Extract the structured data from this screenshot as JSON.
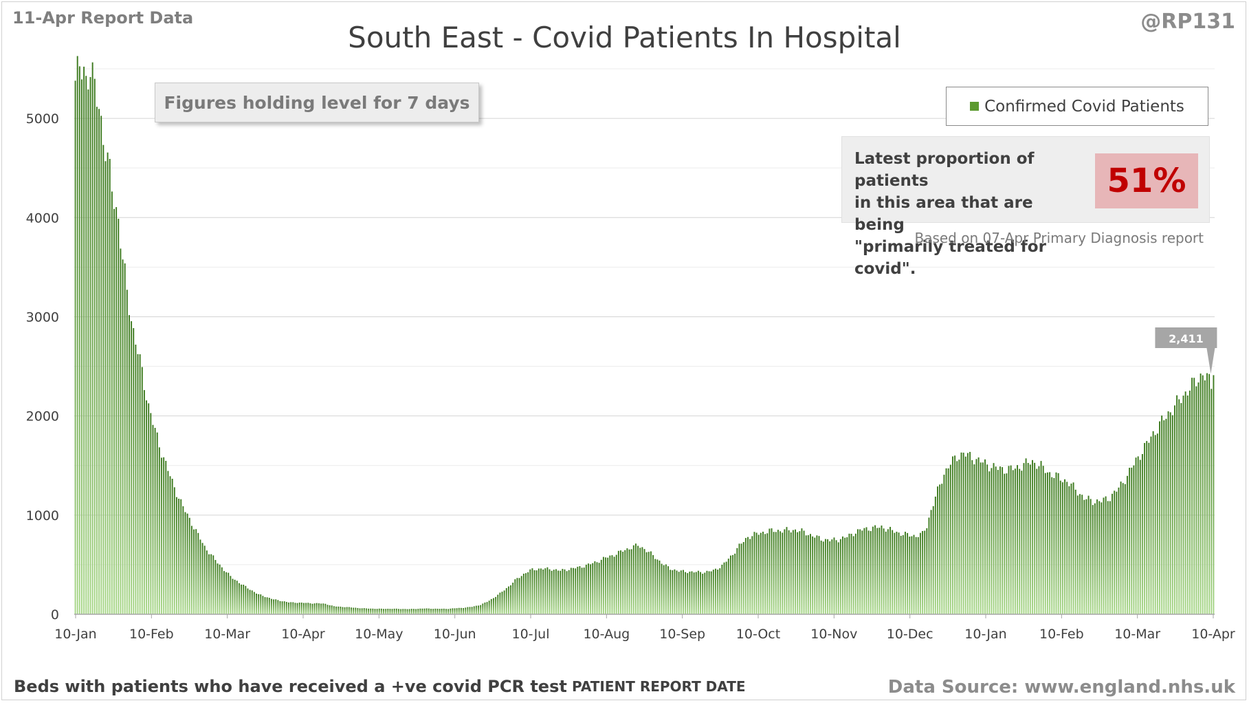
{
  "header": {
    "report_tag": "11-Apr Report Data",
    "handle": "@RP131",
    "title": "South East - Covid Patients In Hospital"
  },
  "banner": "Figures holding level for 7 days",
  "legend": {
    "label": "Confirmed Covid Patients",
    "color": "#5c9a2f"
  },
  "proportion": {
    "text_line1": "Latest proportion of patients",
    "text_line2": "in this area that are being",
    "text_line3": "\"primarily treated for covid\".",
    "value": "51%",
    "note": "Based on 07-Apr Primary Diagnosis report"
  },
  "footer": {
    "left": "Beds with patients who have received a +ve covid PCR test",
    "axis_title": "PATIENT REPORT DATE",
    "source": "Data Source: www.england.nhs.uk"
  },
  "chart_data": {
    "type": "bar",
    "title": "South East - Covid Patients In Hospital",
    "series_name": "Confirmed Covid Patients",
    "xlabel": "PATIENT REPORT DATE",
    "ylabel": "",
    "ylim": [
      0,
      5500
    ],
    "yticks": [
      0,
      1000,
      2000,
      3000,
      4000,
      5000
    ],
    "xticks": [
      "10-Jan",
      "10-Feb",
      "10-Mar",
      "10-Apr",
      "10-May",
      "10-Jun",
      "10-Jul",
      "10-Aug",
      "10-Sep",
      "10-Oct",
      "10-Nov",
      "10-Dec",
      "10-Jan",
      "10-Feb",
      "10-Mar",
      "10-Apr"
    ],
    "grid": true,
    "annotation": {
      "label": "2,411",
      "value": 2411
    },
    "anchors": [
      [
        0,
        5380
      ],
      [
        2,
        5480
      ],
      [
        4,
        5490
      ],
      [
        5,
        5400
      ],
      [
        7,
        5500
      ],
      [
        9,
        5270
      ],
      [
        11,
        5150
      ],
      [
        13,
        4800
      ],
      [
        15,
        4560
      ],
      [
        17,
        4300
      ],
      [
        20,
        3980
      ],
      [
        22,
        3560
      ],
      [
        24,
        3250
      ],
      [
        27,
        2850
      ],
      [
        31,
        2440
      ],
      [
        34,
        2100
      ],
      [
        37,
        1850
      ],
      [
        40,
        1640
      ],
      [
        45,
        1330
      ],
      [
        50,
        1080
      ],
      [
        55,
        880
      ],
      [
        60,
        680
      ],
      [
        66,
        520
      ],
      [
        72,
        380
      ],
      [
        78,
        290
      ],
      [
        85,
        200
      ],
      [
        92,
        150
      ],
      [
        99,
        120
      ],
      [
        106,
        115
      ],
      [
        110,
        110
      ],
      [
        113,
        110
      ],
      [
        116,
        105
      ],
      [
        120,
        80
      ],
      [
        127,
        70
      ],
      [
        133,
        60
      ],
      [
        140,
        55
      ],
      [
        148,
        55
      ],
      [
        155,
        52
      ],
      [
        162,
        58
      ],
      [
        168,
        55
      ],
      [
        173,
        55
      ],
      [
        176,
        60
      ],
      [
        180,
        65
      ],
      [
        184,
        75
      ],
      [
        188,
        95
      ],
      [
        191,
        125
      ],
      [
        194,
        165
      ],
      [
        197,
        210
      ],
      [
        201,
        280
      ],
      [
        205,
        360
      ],
      [
        209,
        420
      ],
      [
        212,
        450
      ],
      [
        216,
        460
      ],
      [
        221,
        455
      ],
      [
        225,
        440
      ],
      [
        229,
        455
      ],
      [
        234,
        475
      ],
      [
        238,
        500
      ],
      [
        242,
        530
      ],
      [
        246,
        570
      ],
      [
        250,
        600
      ],
      [
        254,
        640
      ],
      [
        258,
        675
      ],
      [
        261,
        695
      ],
      [
        264,
        660
      ],
      [
        267,
        610
      ],
      [
        270,
        555
      ],
      [
        273,
        500
      ],
      [
        276,
        460
      ],
      [
        280,
        435
      ],
      [
        284,
        430
      ],
      [
        288,
        425
      ],
      [
        292,
        425
      ],
      [
        296,
        440
      ],
      [
        300,
        490
      ],
      [
        304,
        580
      ],
      [
        308,
        690
      ],
      [
        312,
        780
      ],
      [
        316,
        810
      ],
      [
        322,
        840
      ],
      [
        328,
        845
      ],
      [
        334,
        850
      ],
      [
        338,
        830
      ],
      [
        342,
        790
      ],
      [
        346,
        760
      ],
      [
        350,
        745
      ],
      [
        354,
        755
      ],
      [
        358,
        780
      ],
      [
        362,
        830
      ],
      [
        366,
        860
      ],
      [
        370,
        870
      ],
      [
        374,
        880
      ],
      [
        378,
        850
      ],
      [
        382,
        820
      ],
      [
        386,
        800
      ],
      [
        390,
        790
      ],
      [
        393,
        810
      ],
      [
        395,
        890
      ],
      [
        397,
        1050
      ],
      [
        399,
        1180
      ],
      [
        401,
        1300
      ],
      [
        403,
        1420
      ],
      [
        406,
        1520
      ],
      [
        409,
        1590
      ],
      [
        412,
        1620
      ],
      [
        416,
        1580
      ],
      [
        420,
        1540
      ],
      [
        424,
        1500
      ],
      [
        428,
        1470
      ],
      [
        432,
        1460
      ],
      [
        436,
        1470
      ],
      [
        440,
        1510
      ],
      [
        444,
        1540
      ],
      [
        448,
        1490
      ],
      [
        452,
        1420
      ],
      [
        456,
        1380
      ],
      [
        460,
        1340
      ],
      [
        464,
        1260
      ],
      [
        468,
        1170
      ],
      [
        472,
        1140
      ],
      [
        476,
        1140
      ],
      [
        480,
        1180
      ],
      [
        484,
        1270
      ],
      [
        488,
        1400
      ],
      [
        492,
        1550
      ],
      [
        496,
        1680
      ],
      [
        500,
        1820
      ],
      [
        504,
        1940
      ],
      [
        508,
        2050
      ],
      [
        512,
        2150
      ],
      [
        516,
        2260
      ],
      [
        520,
        2350
      ],
      [
        523,
        2430
      ],
      [
        525,
        2380
      ],
      [
        527,
        2300
      ],
      [
        528,
        2411
      ]
    ]
  }
}
